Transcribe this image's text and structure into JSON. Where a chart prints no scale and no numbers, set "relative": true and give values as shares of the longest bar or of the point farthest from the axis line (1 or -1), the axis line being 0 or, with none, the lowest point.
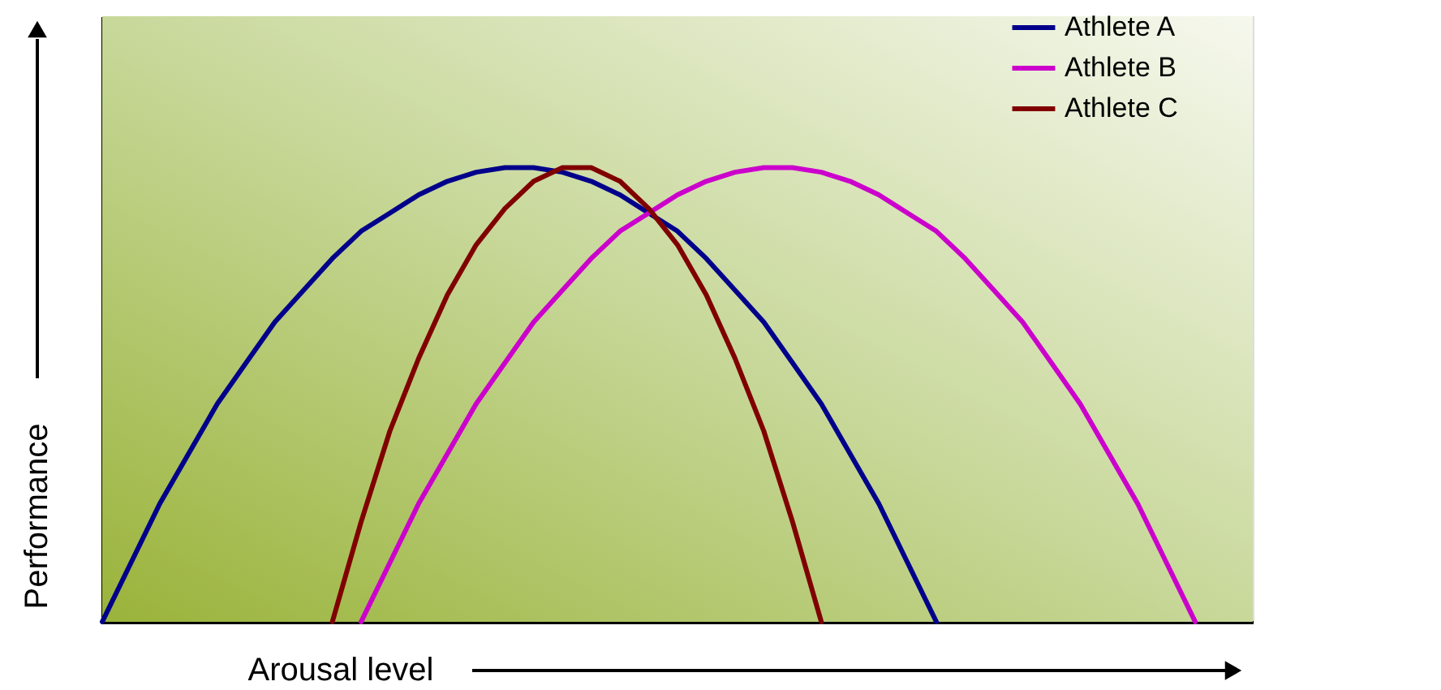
{
  "chart_data": {
    "type": "line",
    "relative": true,
    "xlabel": "Arousal level",
    "ylabel": "Performance",
    "tick_labels": false,
    "grid": false,
    "legend": "top right",
    "marker": "none",
    "line_style": "solid",
    "categories": [
      null,
      null,
      null,
      null,
      null,
      null,
      null,
      null,
      null,
      null,
      null,
      null,
      null,
      null,
      null,
      null,
      null,
      null,
      null,
      null,
      null,
      null,
      null,
      null,
      null,
      null,
      null,
      null,
      null,
      null,
      null,
      null,
      null,
      null,
      null,
      null,
      null,
      null,
      null,
      null,
      null
    ],
    "series": [
      {
        "name": "Athlete A",
        "color": "#00008b",
        "values": [
          0,
          0.13,
          0.26,
          0.37,
          0.48,
          0.57,
          0.66,
          0.73,
          0.8,
          0.86,
          0.9,
          0.94,
          0.97,
          0.99,
          1.0,
          1.0,
          0.99,
          0.97,
          0.94,
          0.9,
          0.86,
          0.8,
          0.73,
          0.66,
          0.57,
          0.48,
          0.37,
          0.26,
          0.13,
          0,
          null,
          null,
          null,
          null,
          null,
          null,
          null,
          null,
          null,
          null,
          null
        ]
      },
      {
        "name": "Athlete B",
        "color": "#cc00cc",
        "values": [
          null,
          null,
          null,
          null,
          null,
          null,
          null,
          null,
          null,
          0,
          0.13,
          0.26,
          0.37,
          0.48,
          0.57,
          0.66,
          0.73,
          0.8,
          0.86,
          0.9,
          0.94,
          0.97,
          0.99,
          1.0,
          1.0,
          0.99,
          0.97,
          0.94,
          0.9,
          0.86,
          0.8,
          0.73,
          0.66,
          0.57,
          0.48,
          0.37,
          0.26,
          0.13,
          0,
          null,
          null
        ]
      },
      {
        "name": "Athlete C",
        "color": "#800000",
        "values": [
          null,
          null,
          null,
          null,
          null,
          null,
          null,
          null,
          0,
          0.22,
          0.42,
          0.58,
          0.72,
          0.83,
          0.91,
          0.97,
          1.0,
          1.0,
          0.97,
          0.91,
          0.83,
          0.72,
          0.58,
          0.42,
          0.22,
          0,
          null,
          null,
          null,
          null,
          null,
          null,
          null,
          null,
          null,
          null,
          null,
          null,
          null,
          null,
          null
        ]
      }
    ]
  }
}
